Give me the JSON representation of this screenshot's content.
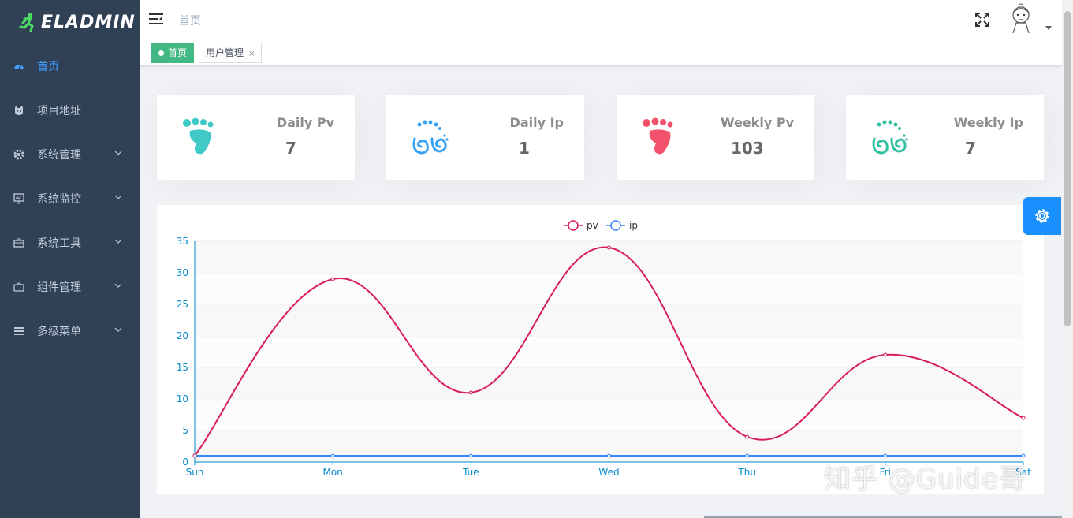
{
  "app": {
    "logo_text": "ELADMIN"
  },
  "sidebar": {
    "items": [
      {
        "label": "首页",
        "icon": "dashboard-icon",
        "active": true,
        "has_children": false
      },
      {
        "label": "项目地址",
        "icon": "github-icon",
        "active": false,
        "has_children": false
      },
      {
        "label": "系统管理",
        "icon": "gear-icon",
        "active": false,
        "has_children": true
      },
      {
        "label": "系统监控",
        "icon": "monitor-icon",
        "active": false,
        "has_children": true
      },
      {
        "label": "系统工具",
        "icon": "toolbox-icon",
        "active": false,
        "has_children": true
      },
      {
        "label": "组件管理",
        "icon": "component-icon",
        "active": false,
        "has_children": true
      },
      {
        "label": "多级菜单",
        "icon": "menu-icon",
        "active": false,
        "has_children": true
      }
    ]
  },
  "navbar": {
    "breadcrumb": "首页"
  },
  "tags": [
    {
      "label": "首页",
      "active": true
    },
    {
      "label": "用户管理",
      "active": false,
      "close": "×"
    }
  ],
  "cards": [
    {
      "label": "Daily Pv",
      "value": "7",
      "icon": "foot-teal-icon",
      "color": "#40c9c6"
    },
    {
      "label": "Daily Ip",
      "value": "1",
      "icon": "footprint-blue-icon",
      "color": "#36a3f7"
    },
    {
      "label": "Weekly Pv",
      "value": "103",
      "icon": "foot-red-icon",
      "color": "#f4516c"
    },
    {
      "label": "Weekly Ip",
      "value": "7",
      "icon": "footprint-green-icon",
      "color": "#34bfa3"
    }
  ],
  "watermark": "知乎 @Guide哥",
  "colors": {
    "sidebar_bg": "#304156",
    "accent": "#409eff",
    "tag_active": "#42b983",
    "pv": "#d81b60",
    "ip": "#3888fa"
  },
  "chart_data": {
    "type": "line",
    "categories": [
      "Sun",
      "Mon",
      "Tue",
      "Wed",
      "Thu",
      "Fri",
      "Sat"
    ],
    "series": [
      {
        "name": "pv",
        "values": [
          1,
          29,
          11,
          34,
          4,
          17,
          7
        ],
        "color": "#d81b60"
      },
      {
        "name": "ip",
        "values": [
          1,
          1,
          1,
          1,
          1,
          1,
          1
        ],
        "color": "#3888fa"
      }
    ],
    "yticks": [
      "0",
      "5",
      "10",
      "15",
      "20",
      "25",
      "30",
      "35"
    ],
    "ylim": [
      0,
      35
    ],
    "legend": "top-center",
    "smooth": true,
    "grid": true
  }
}
